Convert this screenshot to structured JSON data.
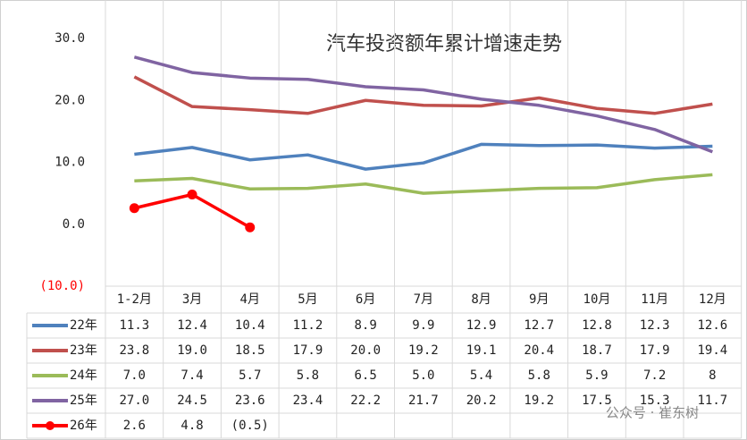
{
  "chart_data": {
    "type": "line",
    "title": "汽车投资额年累计增速走势",
    "categories": [
      "1-2月",
      "3月",
      "4月",
      "5月",
      "6月",
      "7月",
      "8月",
      "9月",
      "10月",
      "11月",
      "12月"
    ],
    "series": [
      {
        "name": "22年",
        "color": "#4f81bd",
        "values": [
          11.3,
          12.4,
          10.4,
          11.2,
          8.9,
          9.9,
          12.9,
          12.7,
          12.8,
          12.3,
          12.6
        ],
        "value_labels": [
          "11.3",
          "12.4",
          "10.4",
          "11.2",
          "8.9",
          "9.9",
          "12.9",
          "12.7",
          "12.8",
          "12.3",
          "12.6"
        ]
      },
      {
        "name": "23年",
        "color": "#c0504d",
        "values": [
          23.8,
          19.0,
          18.5,
          17.9,
          20.0,
          19.2,
          19.1,
          20.4,
          18.7,
          17.9,
          19.4
        ],
        "value_labels": [
          "23.8",
          "19.0",
          "18.5",
          "17.9",
          "20.0",
          "19.2",
          "19.1",
          "20.4",
          "18.7",
          "17.9",
          "19.4"
        ]
      },
      {
        "name": "24年",
        "color": "#9bbb59",
        "values": [
          7.0,
          7.4,
          5.7,
          5.8,
          6.5,
          5.0,
          5.4,
          5.8,
          5.9,
          7.2,
          8
        ],
        "value_labels": [
          "7.0",
          "7.4",
          "5.7",
          "5.8",
          "6.5",
          "5.0",
          "5.4",
          "5.8",
          "5.9",
          "7.2",
          "8"
        ]
      },
      {
        "name": "25年",
        "color": "#8064a2",
        "values": [
          27.0,
          24.5,
          23.6,
          23.4,
          22.2,
          21.7,
          20.2,
          19.2,
          17.5,
          15.3,
          11.7
        ],
        "value_labels": [
          "27.0",
          "24.5",
          "23.6",
          "23.4",
          "22.2",
          "21.7",
          "20.2",
          "19.2",
          "17.5",
          "15.3",
          "11.7"
        ]
      },
      {
        "name": "26年",
        "color": "#ff0000",
        "markers": true,
        "values": [
          2.6,
          4.8,
          -0.5,
          null,
          null,
          null,
          null,
          null,
          null,
          null,
          null
        ],
        "value_labels": [
          "2.6",
          "4.8",
          "(0.5)",
          null,
          null,
          null,
          null,
          null,
          null,
          null,
          null
        ]
      }
    ],
    "ylim": [
      -10,
      30
    ],
    "yticks": [
      {
        "value": 30,
        "label": "30.0"
      },
      {
        "value": 20,
        "label": "20.0"
      },
      {
        "value": 10,
        "label": "10.0"
      },
      {
        "value": 0,
        "label": "0.0"
      },
      {
        "value": -10,
        "label": "(10.0)"
      }
    ],
    "watermark": "公众号 · 崔东树"
  }
}
